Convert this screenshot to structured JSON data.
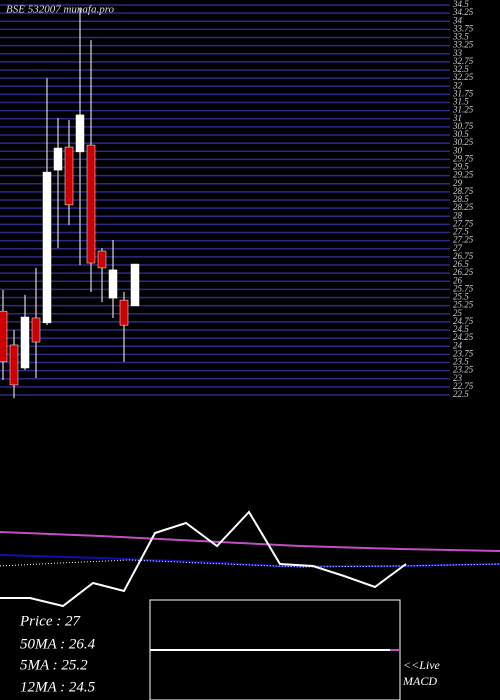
{
  "chart_data": {
    "type": "candlestick",
    "title": "BSE 532007 munafa.pro",
    "categories": [
      null,
      null,
      null,
      null,
      null,
      null,
      null,
      null,
      null,
      null,
      null,
      null,
      null
    ],
    "open": [
      25.08,
      24.04,
      23.33,
      24.87,
      24.72,
      29.42,
      30.13,
      29.98,
      30.19,
      26.93,
      25.48,
      25.42,
      25.24
    ],
    "high": [
      25.73,
      24.5,
      25.58,
      26.41,
      32.25,
      31.02,
      30.96,
      34.41,
      33.42,
      27.02,
      27.27,
      25.67,
      26.53
    ],
    "low": [
      22.96,
      22.4,
      23.27,
      23.02,
      24.65,
      27.02,
      27.73,
      26.5,
      25.67,
      25.36,
      24.87,
      23.52,
      25.24
    ],
    "close": [
      23.52,
      22.81,
      24.9,
      24.13,
      29.36,
      30.1,
      28.35,
      31.12,
      26.56,
      26.41,
      26.35,
      24.65,
      26.53
    ],
    "up_color": "#ffffff",
    "down_color": "#cc0000",
    "grid_color": "#2a2a8a",
    "ylim": [
      22.5,
      34.5
    ],
    "yticks": [
      22.5,
      22.75,
      23,
      23.25,
      23.5,
      23.75,
      24,
      24.25,
      24.5,
      24.75,
      25,
      25.25,
      25.5,
      25.75,
      26,
      26.25,
      26.5,
      26.75,
      27,
      27.25,
      27.5,
      27.75,
      28,
      28.25,
      28.5,
      28.75,
      29,
      29.25,
      29.5,
      29.75,
      30,
      30.25,
      30.5,
      30.75,
      31,
      31.25,
      31.5,
      31.75,
      32,
      32.25,
      32.5,
      32.75,
      33,
      33.25,
      33.5,
      33.75,
      34,
      34.25,
      34.5
    ],
    "grid": true
  },
  "info": [
    "Price   : 27",
    "50MA : 26.4",
    "5MA : 25.2",
    "12MA : 24.5"
  ],
  "live": "<<Live",
  "macd": "MACD"
}
